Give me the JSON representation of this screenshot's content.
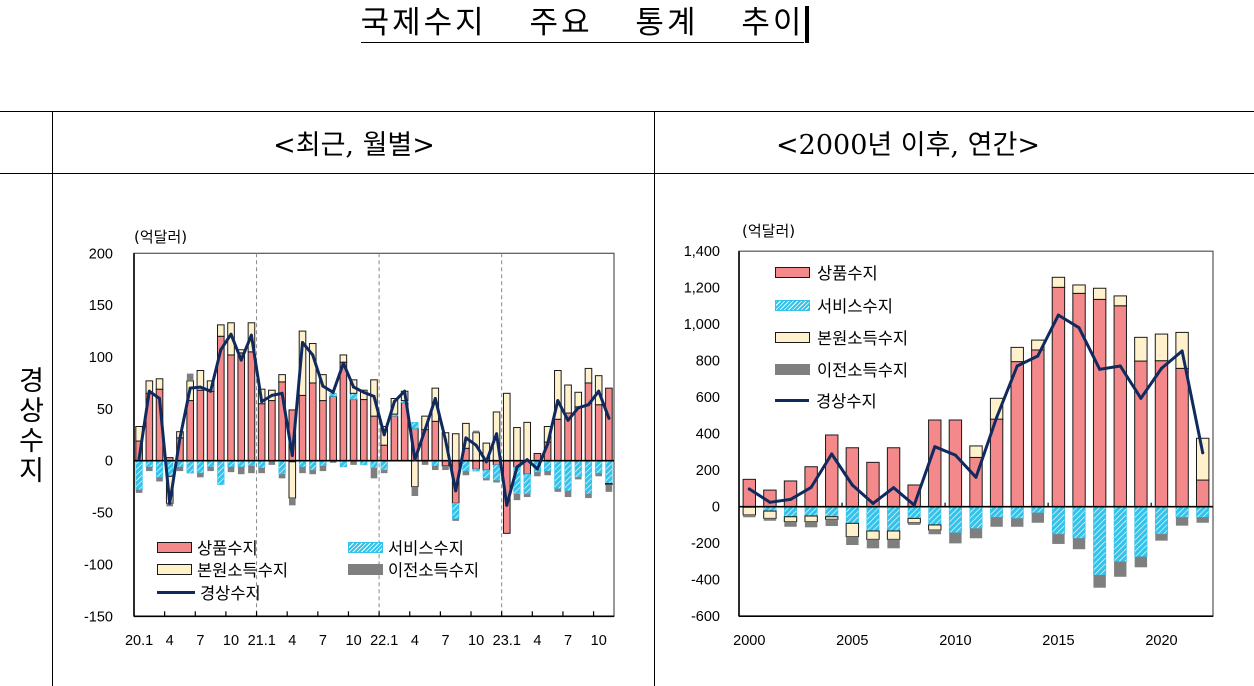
{
  "title": "국제수지 주요 통계 추이",
  "table": {
    "row_label": "경상수지"
  },
  "colors": {
    "goods": "#F4898B",
    "services": "#33C3EA",
    "primary_income": "#FFF1CC",
    "secondary_income": "#7F7F7F",
    "current_account": "#102A5E",
    "bar_outline": "#1A1A1A"
  },
  "chart_data": [
    {
      "type": "bar",
      "title": "<최근, 월별>",
      "unit": "(억달러)",
      "ylim": [
        -150,
        200
      ],
      "yticks": [
        200,
        150,
        100,
        50,
        0,
        -50,
        -100,
        -150
      ],
      "ytick_labels": [
        "200",
        "150",
        "100",
        "50",
        "0",
        "-50",
        "-100",
        "-150"
      ],
      "xtick_every": 3,
      "xtick_labels": [
        "20.1",
        "4",
        "7",
        "10",
        "21.1",
        "4",
        "7",
        "10",
        "22.1",
        "4",
        "7",
        "10",
        "23.1",
        "4",
        "7",
        "10"
      ],
      "grid": false,
      "legend_position": "bottom-left",
      "legend": [
        "상품수지",
        "서비스수지",
        "본원소득수지",
        "이전소득수지",
        "경상수지"
      ],
      "series": [
        {
          "name": "상품수지",
          "type": "bar",
          "values": [
            19,
            65,
            69,
            3,
            22,
            58,
            68,
            67,
            120,
            102,
            104,
            105,
            55,
            58,
            76,
            49,
            63,
            75,
            58,
            62,
            95,
            59,
            59,
            43,
            15,
            43,
            56,
            31,
            30,
            38,
            -5,
            -41,
            12,
            -8,
            -9,
            -4,
            -70,
            -6,
            -13,
            7,
            18,
            40,
            46,
            52,
            75,
            54,
            70
          ]
        },
        {
          "name": "서비스수지",
          "type": "bar",
          "values": [
            -28,
            -6,
            -16,
            -15,
            -6,
            -12,
            -12,
            -6,
            -23,
            -6,
            -6,
            -5,
            -7,
            0,
            -13,
            -1,
            -6,
            -9,
            -5,
            3,
            -6,
            6,
            -4,
            -7,
            -9,
            2,
            2,
            6,
            0,
            -5,
            0,
            -15,
            -10,
            -2,
            -8,
            -15,
            0,
            -26,
            -19,
            -11,
            -10,
            -27,
            -29,
            -16,
            -32,
            -12,
            -22
          ]
        },
        {
          "name": "본원소득수지",
          "type": "bar",
          "values": [
            14,
            12,
            10,
            -26,
            6,
            19,
            19,
            10,
            11,
            31,
            3,
            28,
            14,
            10,
            7,
            -35,
            62,
            38,
            25,
            0,
            7,
            13,
            9,
            35,
            18,
            15,
            9,
            -25,
            13,
            32,
            27,
            26,
            24,
            27,
            17,
            47,
            65,
            32,
            37,
            0,
            15,
            47,
            27,
            14,
            14,
            28,
            -1
          ]
        },
        {
          "name": "이전소득수지",
          "type": "bar",
          "values": [
            -3,
            -4,
            -4,
            -3,
            -4,
            7,
            -4,
            -4,
            0,
            -5,
            -7,
            -7,
            -5,
            -4,
            -4,
            -7,
            -6,
            -4,
            -5,
            -2,
            0,
            -4,
            0,
            -10,
            -3,
            0,
            0,
            -9,
            -4,
            -4,
            -4,
            -2,
            -4,
            2,
            -2,
            -2,
            0,
            -6,
            -3,
            -4,
            -4,
            -3,
            -6,
            -2,
            -4,
            -3,
            -7
          ]
        },
        {
          "name": "경상수지",
          "type": "line",
          "values": [
            2,
            67,
            60,
            -41,
            22,
            70,
            71,
            67,
            107,
            122,
            97,
            121,
            57,
            63,
            65,
            5,
            114,
            102,
            72,
            66,
            94,
            71,
            66,
            62,
            25,
            57,
            67,
            1,
            30,
            60,
            20,
            -29,
            22,
            15,
            -1,
            26,
            -43,
            -6,
            1,
            -8,
            16,
            58,
            39,
            51,
            54,
            67,
            41
          ]
        }
      ]
    },
    {
      "type": "bar",
      "title": "<2000년 이후, 연간>",
      "unit": "(억달러)",
      "ylim": [
        -600,
        1400
      ],
      "yticks": [
        1400,
        1200,
        1000,
        800,
        600,
        400,
        200,
        0,
        -200,
        -400,
        -600
      ],
      "ytick_labels": [
        "1,400",
        "1,200",
        "1,000",
        "800",
        "600",
        "400",
        "200",
        "0",
        "-200",
        "-400",
        "-600"
      ],
      "x": [
        2000,
        2001,
        2002,
        2003,
        2004,
        2005,
        2006,
        2007,
        2008,
        2009,
        2010,
        2011,
        2012,
        2013,
        2014,
        2015,
        2016,
        2017,
        2018,
        2019,
        2020,
        2021,
        2022
      ],
      "xtick_values": [
        2000,
        2005,
        2010,
        2015,
        2020
      ],
      "xtick_labels": [
        "2000",
        "2005",
        "2010",
        "2015",
        "2020"
      ],
      "grid": false,
      "legend_position": "top-left",
      "legend": [
        "상품수지",
        "서비스수지",
        "본원소득수지",
        "이전소득수지",
        "경상수지"
      ],
      "series": [
        {
          "name": "상품수지",
          "type": "bar",
          "values": [
            150,
            91,
            141,
            219,
            393,
            323,
            243,
            323,
            119,
            475,
            475,
            270,
            480,
            795,
            859,
            1202,
            1169,
            1136,
            1101,
            798,
            800,
            758,
            146
          ]
        },
        {
          "name": "서비스수지",
          "type": "bar",
          "values": [
            -3,
            -24,
            -55,
            -51,
            -55,
            -91,
            -133,
            -133,
            -64,
            -100,
            -142,
            -119,
            -58,
            -64,
            -33,
            -150,
            -173,
            -374,
            -301,
            -274,
            -150,
            -58,
            -58
          ]
        },
        {
          "name": "본원소득수지",
          "type": "bar",
          "values": [
            -42,
            -40,
            -27,
            -31,
            -14,
            -73,
            -46,
            -46,
            -24,
            -28,
            0,
            63,
            114,
            78,
            54,
            55,
            46,
            61,
            54,
            130,
            146,
            197,
            229
          ]
        },
        {
          "name": "이전소득수지",
          "type": "bar",
          "values": [
            -13,
            -13,
            -28,
            -31,
            -37,
            -46,
            -49,
            -49,
            -12,
            -23,
            -59,
            -54,
            -52,
            -46,
            -55,
            -54,
            -60,
            -70,
            -83,
            -58,
            -36,
            -46,
            -30
          ]
        },
        {
          "name": "경상수지",
          "type": "line",
          "values": [
            97,
            24,
            40,
            106,
            289,
            119,
            18,
            104,
            9,
            329,
            283,
            161,
            488,
            771,
            826,
            1050,
            981,
            753,
            771,
            594,
            758,
            853,
            296
          ]
        }
      ]
    }
  ]
}
